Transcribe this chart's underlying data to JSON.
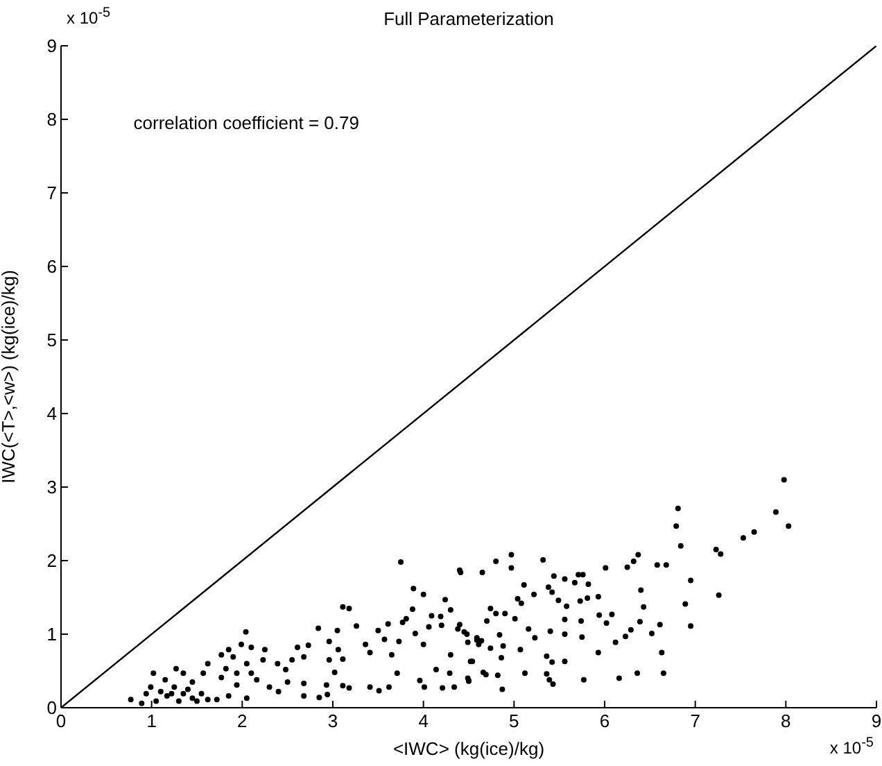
{
  "chart_data": {
    "type": "scatter",
    "title": "Full Parameterization",
    "xlabel": "<IWC> (kg(ice)/kg)",
    "ylabel": "IWC(<T>,<w>) (kg(ice)/kg)",
    "annotations": [
      "correlation coefficient = 0.79",
      "x 10$^{-5}$",
      "x 10$^{-5}$"
    ],
    "xlim": [
      0,
      9
    ],
    "ylim": [
      0,
      9
    ],
    "xticks": [
      0,
      1,
      2,
      3,
      4,
      5,
      6,
      7,
      8,
      9
    ],
    "yticks": [
      0,
      1,
      2,
      3,
      4,
      5,
      6,
      7,
      8,
      9
    ],
    "grid": false,
    "marker": "circle",
    "series": [
      {
        "type": "line",
        "color": "#000000",
        "marker": "none",
        "x": [
          0,
          9
        ],
        "values": [
          0,
          9
        ]
      },
      {
        "color": "#000000",
        "x": [
          7.98,
          8.03,
          7.89,
          7.65,
          7.53,
          7.28,
          7.23,
          7.26,
          6.81,
          6.79,
          6.84,
          6.95,
          6.95,
          6.89,
          6.68,
          6.58,
          6.37,
          6.32,
          6.25,
          6.4,
          6.43,
          6.39,
          6.29,
          6.23,
          6.52,
          6.61,
          6.63,
          6.65,
          6.36,
          6.16,
          6.12,
          6.02,
          6.08,
          5.94,
          5.93,
          6.01,
          5.93,
          5.81,
          5.73,
          5.82,
          5.76,
          5.71,
          5.67,
          5.56,
          5.44,
          5.38,
          5.42,
          5.49,
          5.58,
          5.56,
          5.74,
          5.75,
          5.56,
          5.4,
          5.56,
          5.42,
          5.36,
          5.77,
          5.36,
          5.39,
          5.43,
          5.12,
          5.07,
          5.16,
          5.23,
          5.01,
          5.04,
          5.08,
          5.11,
          5.22,
          5.32,
          4.97,
          4.97,
          4.8,
          4.65,
          4.8,
          4.74,
          4.7,
          4.9,
          4.74,
          4.84,
          4.88,
          4.86,
          4.82,
          4.66,
          4.87,
          4.49,
          4.5,
          4.52,
          4.49,
          4.59,
          4.61,
          4.64,
          4.45,
          4.4,
          4.4,
          3.75,
          4.41,
          3.89,
          4.0,
          4.24,
          3.11,
          3.18,
          3.88,
          4.3,
          4.09,
          4.19,
          3.81,
          3.77,
          4.06,
          4.2,
          3.91,
          4.38,
          4.48,
          3.61,
          3.5,
          3.26,
          2.84,
          3.05,
          2.61,
          2.73,
          2.96,
          3.06,
          3.36,
          3.41,
          3.57,
          3.73,
          3.65,
          4.0,
          4.3,
          4.59,
          4.69,
          4.54,
          4.5,
          4.29,
          4.21,
          4.34,
          3.96,
          4.01,
          3.71,
          3.62,
          3.41,
          3.51,
          4.14,
          3.11,
          2.96,
          3.02,
          2.93,
          3.11,
          3.18,
          2.85,
          2.94,
          2.68,
          2.55,
          2.48,
          2.39,
          2.5,
          2.3,
          2.4,
          2.68,
          2.68,
          2.1,
          2.25,
          2.23,
          2.04,
          1.99,
          1.85,
          1.77,
          1.9,
          2.05,
          2.1,
          2.16,
          1.94,
          1.82,
          1.77,
          1.94,
          1.85,
          2.05,
          1.62,
          1.57,
          1.62,
          1.72,
          1.55,
          1.45,
          1.35,
          1.27,
          1.4,
          1.5,
          1.25,
          1.15,
          1.02,
          1.1,
          0.94,
          0.99,
          1.17,
          1.3,
          1.05,
          0.89,
          0.77,
          1.22,
          1.35,
          1.45
        ],
        "values": [
          3.1,
          2.47,
          2.66,
          2.39,
          2.31,
          2.09,
          2.15,
          1.53,
          2.71,
          2.47,
          2.2,
          1.73,
          1.11,
          1.41,
          1.94,
          1.94,
          2.08,
          1.99,
          1.91,
          1.6,
          1.37,
          1.17,
          1.06,
          0.97,
          1.01,
          1.13,
          0.75,
          0.47,
          0.47,
          0.4,
          0.89,
          1.15,
          1.27,
          1.26,
          0.75,
          1.9,
          1.51,
          1.49,
          1.45,
          1.68,
          1.81,
          1.81,
          1.7,
          1.75,
          1.79,
          1.64,
          1.57,
          1.46,
          1.38,
          1.2,
          1.18,
          0.96,
          1.0,
          1.04,
          0.63,
          0.62,
          0.7,
          0.38,
          0.46,
          0.38,
          0.32,
          0.47,
          0.79,
          1.07,
          0.95,
          1.21,
          1.48,
          1.42,
          1.67,
          1.54,
          2.01,
          2.08,
          1.9,
          1.99,
          1.84,
          1.28,
          1.35,
          1.18,
          1.28,
          0.81,
          0.99,
          0.84,
          0.68,
          0.44,
          0.48,
          0.25,
          0.4,
          0.37,
          0.63,
          0.89,
          0.95,
          0.86,
          0.91,
          1.03,
          1.13,
          1.87,
          1.98,
          1.84,
          1.62,
          1.54,
          1.47,
          1.37,
          1.35,
          1.34,
          1.33,
          1.25,
          1.24,
          1.21,
          1.16,
          1.1,
          1.12,
          1.01,
          1.07,
          1.0,
          1.14,
          1.05,
          1.11,
          1.08,
          1.05,
          0.82,
          0.85,
          0.9,
          0.79,
          0.86,
          0.75,
          0.93,
          0.9,
          0.72,
          0.86,
          0.72,
          0.92,
          0.45,
          0.63,
          0.36,
          0.47,
          0.27,
          0.28,
          0.37,
          0.28,
          0.47,
          0.28,
          0.28,
          0.23,
          0.52,
          0.66,
          0.65,
          0.48,
          0.31,
          0.3,
          0.27,
          0.14,
          0.18,
          0.69,
          0.65,
          0.52,
          0.6,
          0.35,
          0.28,
          0.22,
          0.16,
          0.33,
          0.82,
          0.79,
          0.65,
          1.03,
          0.86,
          0.79,
          0.72,
          0.69,
          0.6,
          0.47,
          0.38,
          0.47,
          0.53,
          0.41,
          0.31,
          0.16,
          0.13,
          0.6,
          0.47,
          0.11,
          0.11,
          0.19,
          0.35,
          0.47,
          0.53,
          0.25,
          0.09,
          0.28,
          0.38,
          0.47,
          0.22,
          0.19,
          0.28,
          0.16,
          0.09,
          0.09,
          0.06,
          0.11,
          0.19,
          0.19,
          0.13
        ]
      }
    ]
  }
}
